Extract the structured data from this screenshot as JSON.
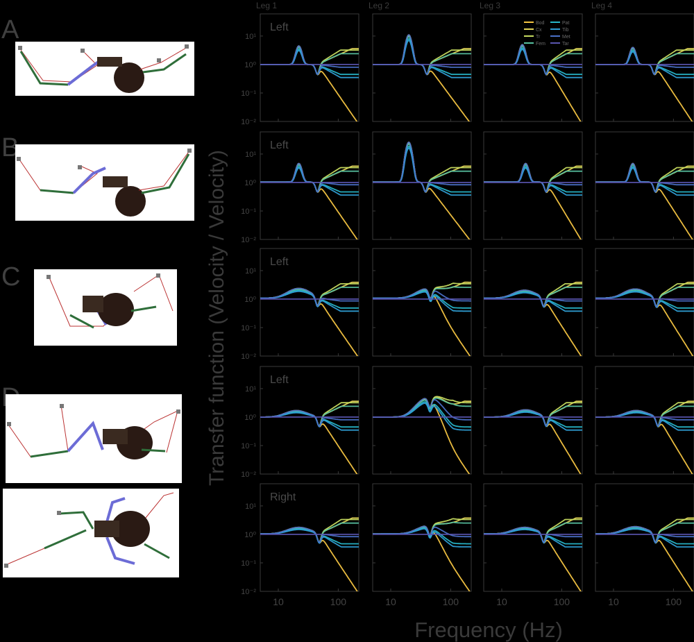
{
  "figure": {
    "leg_titles": [
      "Leg 1",
      "Leg 2",
      "Leg 3",
      "Leg 4"
    ],
    "row_letters": [
      "A",
      "B",
      "C",
      "D"
    ],
    "row_side_labels": [
      "Left",
      "Left",
      "Left",
      "Left",
      "Right"
    ],
    "ylabel": "Transfer function (Velocity / Velocity)",
    "xlabel": "Frequency (Hz)",
    "x_ticks": [
      "10",
      "100"
    ],
    "y_ticks": [
      "10¹",
      "10⁰",
      "10⁻¹",
      "10⁻²"
    ],
    "legend": {
      "col1": [
        "Bod",
        "Cx",
        "Tr",
        "Fem"
      ],
      "col2": [
        "Pat",
        "Tib",
        "Met",
        "Tar"
      ]
    },
    "colors": {
      "Bod": "#f5c542",
      "Cx": "#e6d75a",
      "Tr": "#c7dc60",
      "Fem": "#57c1a0",
      "Pat": "#27b6c9",
      "Tib": "#2f9fd6",
      "Met": "#4a70c8",
      "Tar": "#5a55b0",
      "axis": "#3a3a3a",
      "text": "#444444"
    }
  },
  "chart_data": {
    "type": "line",
    "xscale": "log",
    "yscale": "log",
    "xlim": [
      5,
      220
    ],
    "ylim": [
      0.01,
      60
    ],
    "rows": [
      {
        "peak_f": [
          22,
          20,
          22,
          21
        ],
        "peak_amp": [
          4.5,
          11,
          5,
          4
        ],
        "notch_f": [
          45,
          40,
          55,
          48
        ],
        "sharp": 1.0
      },
      {
        "peak_f": [
          22,
          20,
          25,
          21
        ],
        "peak_amp": [
          4.5,
          25,
          4.5,
          4.5
        ],
        "notch_f": [
          45,
          38,
          55,
          50
        ],
        "sharp": 1.0
      },
      {
        "peak_f": [
          22,
          42,
          24,
          23
        ],
        "peak_amp": [
          2.2,
          2.2,
          1.9,
          2.1
        ],
        "notch_f": [
          45,
          46,
          50,
          52
        ],
        "sharp": 0.3
      },
      {
        "peak_f": [
          20,
          44,
          25,
          24
        ],
        "peak_amp": [
          1.7,
          5,
          1.8,
          1.7
        ],
        "notch_f": [
          48,
          45,
          55,
          55
        ],
        "sharp": 0.3
      },
      {
        "peak_f": [
          22,
          44,
          24,
          23
        ],
        "peak_amp": [
          1.7,
          2,
          1.7,
          1.8
        ],
        "notch_f": [
          48,
          45,
          50,
          50
        ],
        "sharp": 0.25
      }
    ],
    "series": [
      "Bod",
      "Cx",
      "Tr",
      "Fem",
      "Pat",
      "Tib",
      "Met",
      "Tar"
    ]
  }
}
